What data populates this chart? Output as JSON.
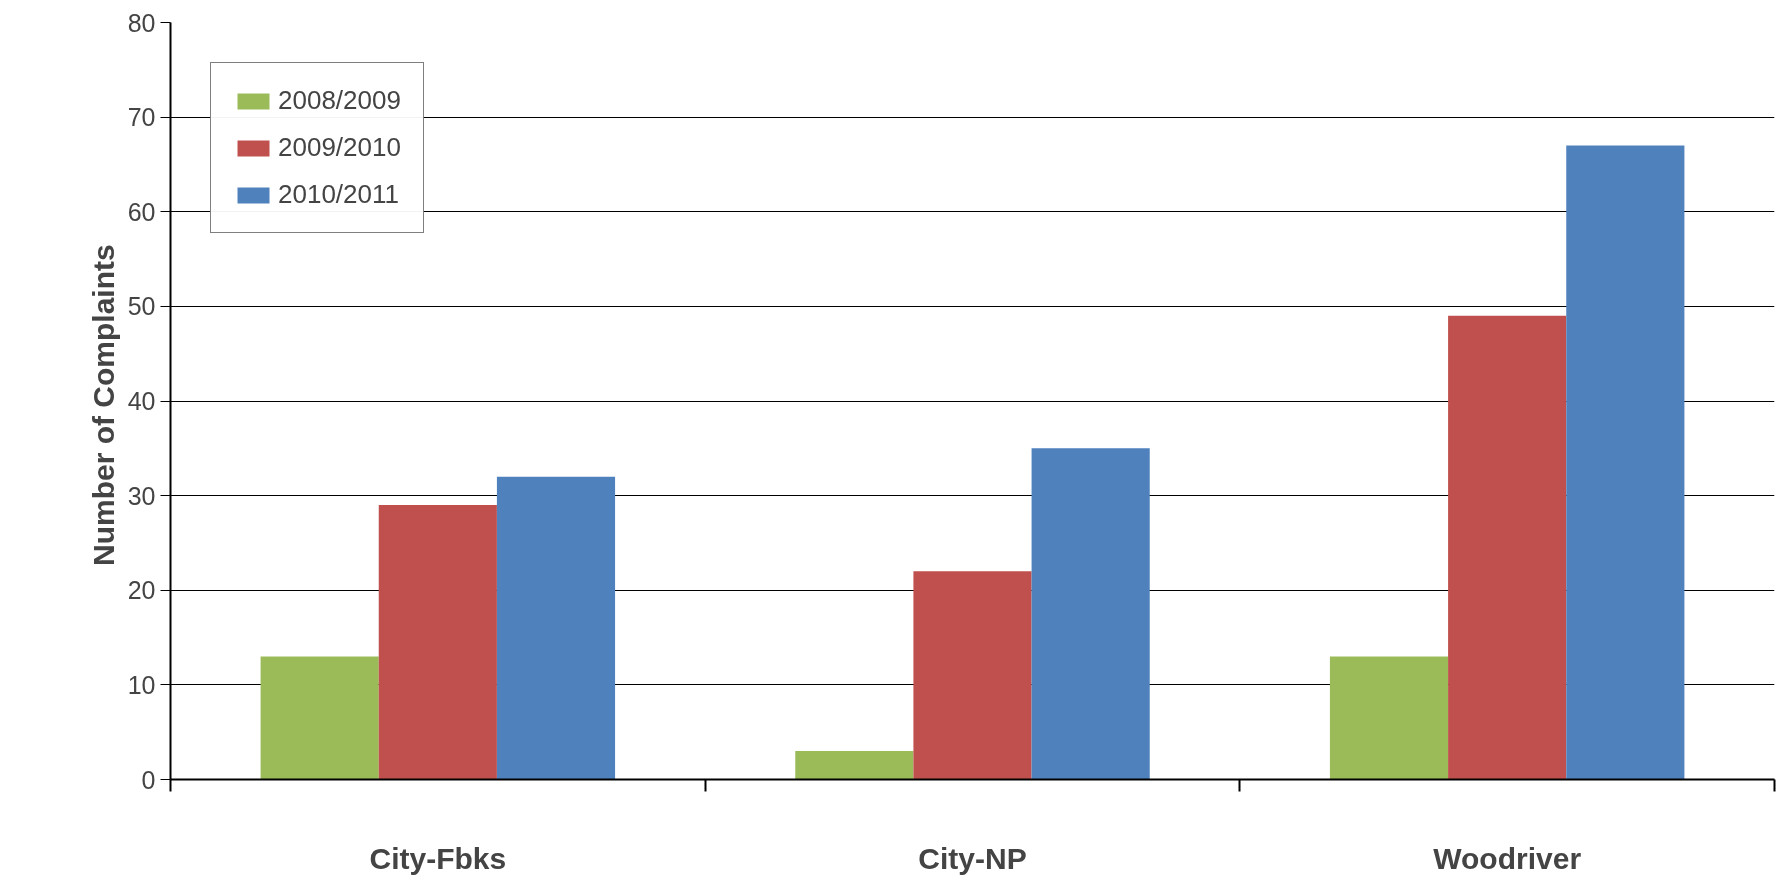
{
  "chart_data": {
    "type": "bar",
    "ylabel": "Number of  Complaints",
    "categories": [
      "City-Fbks",
      "City-NP",
      "Woodriver"
    ],
    "series": [
      {
        "name": "2008/2009",
        "color": "#9bbb59",
        "values": [
          13,
          3,
          13
        ]
      },
      {
        "name": "2009/2010",
        "color": "#c0504d",
        "values": [
          29,
          22,
          49
        ]
      },
      {
        "name": "2010/2011",
        "color": "#4f81bd",
        "values": [
          32,
          35,
          67
        ]
      }
    ],
    "ylim": [
      0,
      80
    ],
    "yticks": [
      0,
      10,
      20,
      30,
      40,
      50,
      60,
      70,
      80
    ],
    "grid": "y",
    "legend": "top left"
  }
}
